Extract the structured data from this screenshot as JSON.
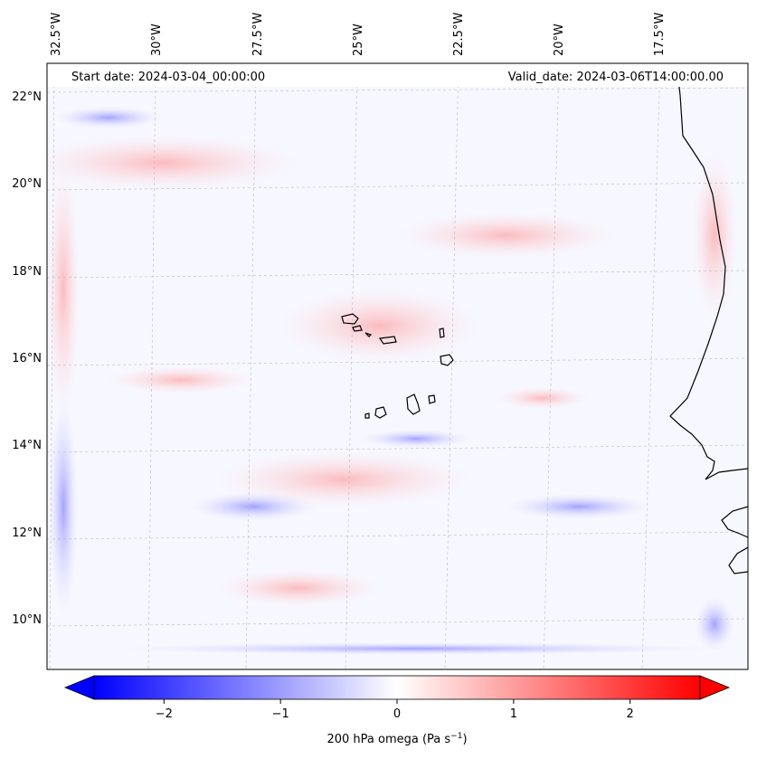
{
  "header": {
    "start_date": "Start date: 2024-03-04_00:00:00",
    "valid_date": "Valid_date: 2024-03-06T14:00:00.00"
  },
  "map": {
    "lon_labels": [
      "32.5°W",
      "30°W",
      "27.5°W",
      "25°W",
      "22.5°W",
      "20°W",
      "17.5°W"
    ],
    "lat_labels": [
      "22°N",
      "20°N",
      "18°N",
      "16°N",
      "14°N",
      "12°N",
      "10°N"
    ],
    "colors": {
      "negative": "#0000ff",
      "positive": "#ff0000",
      "neutral": "#ffffff",
      "coastline": "#000000",
      "gridline": "#bbbbbb"
    }
  },
  "colorbar": {
    "ticks": [
      "−2",
      "−1",
      "0",
      "1",
      "2"
    ],
    "tick_values": [
      -2,
      -1,
      0,
      1,
      2
    ],
    "range": [
      -2.6,
      2.6
    ],
    "label_main": "200 hPa omega (Pa s",
    "label_exp": "−1",
    "label_end": ")"
  }
}
